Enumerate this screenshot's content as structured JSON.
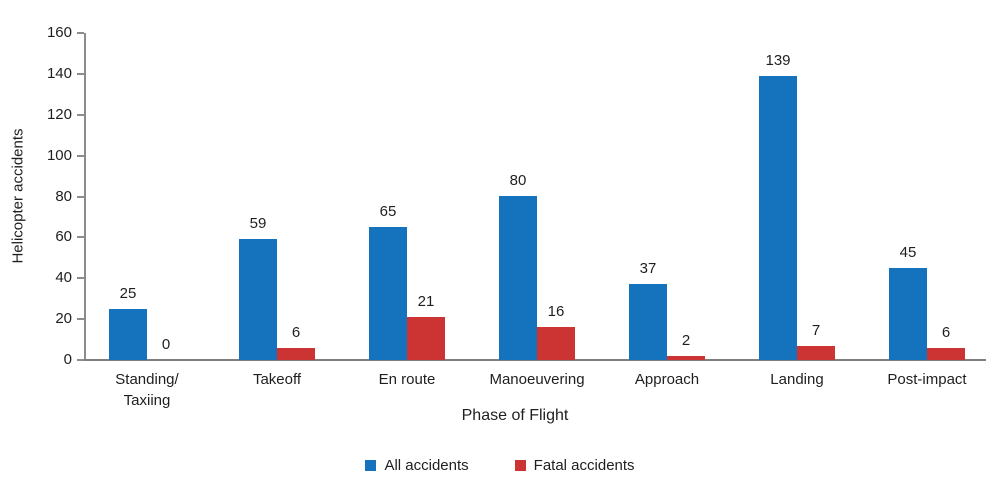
{
  "figure": {
    "y_axis_title": "Helicopter accidents",
    "x_axis_title": "Phase of Flight"
  },
  "legend": {
    "items": [
      {
        "label": "All accidents",
        "color": "#1473bc"
      },
      {
        "label": "Fatal accidents",
        "color": "#cc3433"
      }
    ]
  },
  "chart_data": {
    "type": "bar",
    "title": "",
    "categories": [
      "Standing/\nTaxiing",
      "Takeoff",
      "En route",
      "Manoeuvering",
      "Approach",
      "Landing",
      "Post-impact"
    ],
    "series": [
      {
        "name": "All accidents",
        "color": "#1473bc",
        "values": [
          25,
          59,
          65,
          80,
          37,
          139,
          45
        ]
      },
      {
        "name": "Fatal accidents",
        "color": "#cc3433",
        "values": [
          0,
          6,
          21,
          16,
          2,
          7,
          6
        ]
      }
    ],
    "xlabel": "Phase of Flight",
    "ylabel": "Helicopter accidents",
    "ylim": [
      0,
      160
    ],
    "ytick_step": 20,
    "yticks": [
      0,
      20,
      40,
      60,
      80,
      100,
      120,
      140,
      160
    ],
    "grid": false,
    "bar_value_labels": true,
    "legend_position": "bottom",
    "axis_color": "#8c8c8c",
    "text_color": "#1f1f1f"
  }
}
